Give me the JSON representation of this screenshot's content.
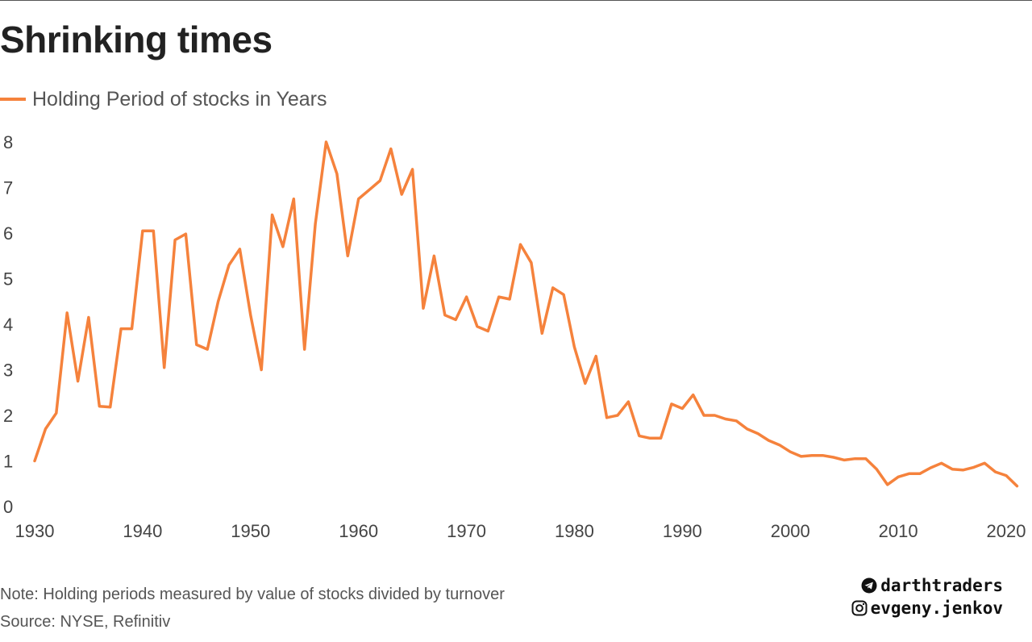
{
  "title": "Shrinking times",
  "note": "Note: Holding periods measured by value of stocks divided by turnover",
  "source": "Source: NYSE, Refinitiv",
  "branding": {
    "telegram": "darthtraders",
    "instagram": "evgeny.jenkov"
  },
  "colors": {
    "line": "#f5823c",
    "text": "#222222",
    "muted": "#555555"
  },
  "chart_data": {
    "type": "line",
    "title": "Shrinking times",
    "xlabel": "",
    "ylabel": "",
    "xlim": [
      1930,
      2021
    ],
    "ylim": [
      0,
      8
    ],
    "x_ticks": [
      1930,
      1940,
      1950,
      1960,
      1970,
      1980,
      1990,
      2000,
      2010,
      2020
    ],
    "y_ticks": [
      0,
      1,
      2,
      3,
      4,
      5,
      6,
      7,
      8
    ],
    "grid": false,
    "legend": "top-left",
    "series": [
      {
        "name": "Holding Period of stocks in Years",
        "color": "#f5823c",
        "x": [
          1930,
          1931,
          1932,
          1933,
          1934,
          1935,
          1936,
          1937,
          1938,
          1939,
          1940,
          1941,
          1942,
          1943,
          1944,
          1945,
          1946,
          1947,
          1948,
          1949,
          1950,
          1951,
          1952,
          1953,
          1954,
          1955,
          1956,
          1957,
          1958,
          1959,
          1960,
          1961,
          1962,
          1963,
          1964,
          1965,
          1966,
          1967,
          1968,
          1969,
          1970,
          1971,
          1972,
          1973,
          1974,
          1975,
          1976,
          1977,
          1978,
          1979,
          1980,
          1981,
          1982,
          1983,
          1984,
          1985,
          1986,
          1987,
          1988,
          1989,
          1990,
          1991,
          1992,
          1993,
          1994,
          1995,
          1996,
          1997,
          1998,
          1999,
          2000,
          2001,
          2002,
          2003,
          2004,
          2005,
          2006,
          2007,
          2008,
          2009,
          2010,
          2011,
          2012,
          2013,
          2014,
          2015,
          2016,
          2017,
          2018,
          2019,
          2020,
          2021
        ],
        "values": [
          1.0,
          1.7,
          2.05,
          4.25,
          2.75,
          4.15,
          2.2,
          2.18,
          3.9,
          3.9,
          6.05,
          6.05,
          3.05,
          5.85,
          5.98,
          3.55,
          3.45,
          4.5,
          5.3,
          5.65,
          4.2,
          3.0,
          6.4,
          5.7,
          6.75,
          3.45,
          6.2,
          8.0,
          7.3,
          5.5,
          6.75,
          6.95,
          7.15,
          7.85,
          6.85,
          7.4,
          4.35,
          5.5,
          4.2,
          4.1,
          4.6,
          3.95,
          3.85,
          4.6,
          4.55,
          5.75,
          5.35,
          3.8,
          4.8,
          4.65,
          3.5,
          2.7,
          3.3,
          1.95,
          2.0,
          2.3,
          1.55,
          1.5,
          1.5,
          2.25,
          2.15,
          2.45,
          2.0,
          2.0,
          1.92,
          1.88,
          1.7,
          1.6,
          1.45,
          1.35,
          1.2,
          1.1,
          1.12,
          1.12,
          1.08,
          1.02,
          1.05,
          1.05,
          0.82,
          0.48,
          0.65,
          0.72,
          0.72,
          0.85,
          0.95,
          0.82,
          0.8,
          0.86,
          0.95,
          0.76,
          0.68,
          0.45
        ]
      }
    ]
  }
}
